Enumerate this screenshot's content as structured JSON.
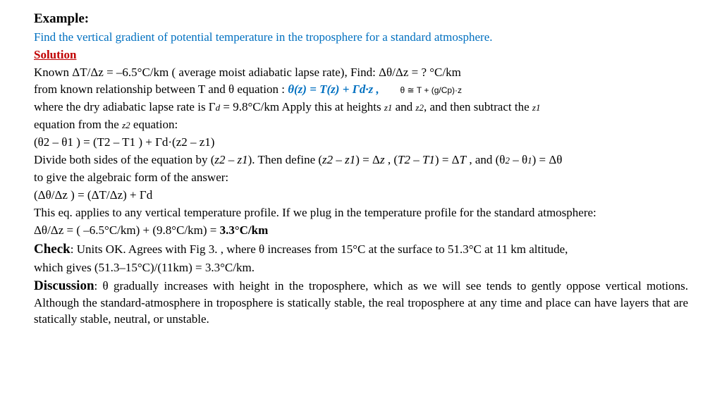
{
  "title": "Example:",
  "prompt": "Find the vertical gradient of potential temperature in the troposphere for a standard atmosphere.",
  "solution_label": "Solution",
  "known_line": "Known  ΔT/Δz = –6.5°C/km ( average moist adiabatic lapse rate), Find: Δθ/Δz = ? °C/km",
  "rel_prefix": "from known relationship between T and θ equation :   ",
  "rel_blue": "θ(z) = T(z) + Γd·z ,",
  "rel_tiny": "θ  ≅  T  +  (g/Cp)·z",
  "where_line_a": "where the dry adiabatic lapse rate is Γ",
  "where_line_b": " = 9.8°C/km Apply this at heights ",
  "where_line_c": " and ",
  "where_line_d": ", and then subtract the ",
  "where_line2_a": "equation from the ",
  "where_line2_b": " equation:",
  "eq1": "(θ2 – θ1 ) = (T2 – T1 ) + Γd·(z2 – z1)",
  "divide_a": "Divide both sides of the equation by (",
  "divide_b": "). Then define (",
  "divide_c": ") = Δ",
  "divide_d": " , (",
  "divide_e": ") = Δ",
  "divide_f": " , and (θ",
  "divide_g": " – θ",
  "divide_h": ") = Δθ",
  "alg_line": "to give the algebraic form of the answer:",
  "eq2": "(Δθ/Δz ) = (ΔT/Δz) + Γd",
  "applies_line": "This eq. applies to any vertical temperature profile. If we plug in the temperature profile for the standard atmosphere:",
  "result_prefix": "Δθ/Δz = ( –6.5°C/km) + (9.8°C/km) = ",
  "result_bold": "3.3°C/km",
  "check_label": "Check",
  "check_text": ": Units OK. Agrees with Fig 3. , where θ increases from 15°C at the surface to 51.3°C at 11 km altitude,",
  "check_line2": "which gives (51.3–15°C)/(11km) = 3.3°C/km.",
  "discussion_label": "Discussion",
  "discussion_text": ": θ gradually increases with height in the troposphere, which as we will see tends to gently oppose vertical motions. Although the standard-atmosphere in troposphere is statically stable, the real troposphere at any time and place can have layers that are statically stable, neutral, or unstable.",
  "sub": {
    "d": "d",
    "z1": "z1",
    "z2": "z2",
    "two": "2",
    "one": "1",
    "z2mz1": "z2 – z1",
    "T2mT1": "T2 – T1",
    "z": "z",
    "T": "T"
  }
}
